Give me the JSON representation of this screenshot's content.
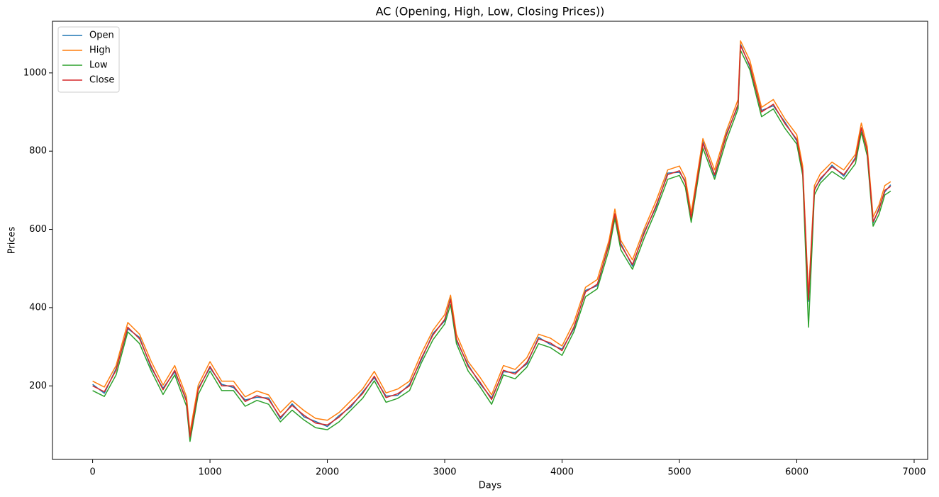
{
  "chart_data": {
    "type": "line",
    "title": "AC (Opening, High, Low, Closing Prices))",
    "x_label": "Days",
    "y_label": "Prices",
    "x": [
      0,
      100,
      200,
      300,
      400,
      500,
      600,
      700,
      800,
      830,
      900,
      1000,
      1100,
      1200,
      1300,
      1400,
      1500,
      1600,
      1700,
      1800,
      1900,
      2000,
      2100,
      2200,
      2300,
      2400,
      2500,
      2600,
      2700,
      2800,
      2900,
      3000,
      3050,
      3100,
      3200,
      3300,
      3400,
      3500,
      3600,
      3700,
      3800,
      3900,
      4000,
      4100,
      4200,
      4300,
      4400,
      4450,
      4500,
      4600,
      4700,
      4800,
      4900,
      5000,
      5050,
      5100,
      5200,
      5300,
      5400,
      5500,
      5520,
      5600,
      5700,
      5800,
      5900,
      6000,
      6050,
      6100,
      6150,
      6200,
      6300,
      6400,
      6500,
      6550,
      6600,
      6650,
      6700,
      6750,
      6800
    ],
    "series": [
      {
        "name": "Open",
        "color": "#1f77b4",
        "values": [
          204,
          181,
          244,
          346,
          324,
          246,
          194,
          236,
          164,
          66,
          194,
          246,
          204,
          196,
          164,
          171,
          169,
          116,
          154,
          121,
          109,
          96,
          124,
          146,
          184,
          221,
          174,
          176,
          204,
          266,
          334,
          366,
          424,
          316,
          254,
          206,
          169,
          236,
          234,
          256,
          324,
          306,
          294,
          346,
          444,
          456,
          564,
          636,
          564,
          506,
          594,
          656,
          744,
          746,
          724,
          626,
          824,
          736,
          844,
          916,
          1074,
          1016,
          904,
          916,
          874,
          826,
          754,
          416,
          704,
          726,
          764,
          736,
          784,
          856,
          804,
          616,
          654,
          696,
          714
        ]
      },
      {
        "name": "High",
        "color": "#ff7f0e",
        "values": [
          212,
          197,
          252,
          362,
          332,
          262,
          202,
          252,
          172,
          82,
          202,
          262,
          212,
          212,
          172,
          187,
          177,
          132,
          162,
          137,
          117,
          112,
          132,
          162,
          192,
          237,
          182,
          192,
          212,
          282,
          342,
          382,
          432,
          332,
          262,
          222,
          177,
          252,
          242,
          272,
          332,
          322,
          302,
          362,
          452,
          472,
          572,
          652,
          572,
          522,
          602,
          672,
          752,
          762,
          732,
          642,
          832,
          752,
          852,
          932,
          1082,
          1032,
          912,
          932,
          882,
          842,
          762,
          432,
          712,
          742,
          772,
          752,
          792,
          872,
          812,
          632,
          662,
          712,
          722
        ]
      },
      {
        "name": "Low",
        "color": "#2ca02c",
        "values": [
          188,
          173,
          228,
          338,
          308,
          238,
          178,
          228,
          148,
          58,
          178,
          238,
          188,
          188,
          148,
          163,
          153,
          108,
          138,
          113,
          93,
          88,
          108,
          138,
          168,
          213,
          158,
          168,
          188,
          258,
          318,
          358,
          408,
          308,
          238,
          198,
          153,
          228,
          218,
          248,
          308,
          298,
          278,
          338,
          428,
          448,
          548,
          628,
          548,
          498,
          578,
          648,
          728,
          738,
          708,
          618,
          808,
          728,
          828,
          908,
          1058,
          1008,
          888,
          908,
          858,
          818,
          738,
          350,
          688,
          718,
          748,
          728,
          768,
          848,
          788,
          608,
          638,
          688,
          698
        ]
      },
      {
        "name": "Close",
        "color": "#d62728",
        "values": [
          200,
          185,
          240,
          350,
          320,
          250,
          190,
          240,
          160,
          70,
          190,
          250,
          200,
          200,
          160,
          175,
          165,
          120,
          150,
          125,
          105,
          100,
          120,
          150,
          180,
          225,
          170,
          180,
          200,
          270,
          330,
          370,
          420,
          320,
          250,
          210,
          165,
          240,
          230,
          260,
          320,
          310,
          290,
          350,
          440,
          460,
          560,
          640,
          560,
          510,
          590,
          660,
          740,
          750,
          720,
          630,
          820,
          740,
          840,
          920,
          1070,
          1020,
          900,
          920,
          870,
          830,
          750,
          420,
          700,
          730,
          760,
          740,
          780,
          860,
          800,
          620,
          650,
          700,
          710
        ]
      }
    ],
    "xlim": [
      -342,
      7115
    ],
    "ylim": [
      12,
      1132
    ],
    "xticks": [
      0,
      1000,
      2000,
      3000,
      4000,
      5000,
      6000,
      7000
    ],
    "yticks": [
      200,
      400,
      600,
      800,
      1000
    ],
    "grid": false,
    "legend": "upper left"
  }
}
